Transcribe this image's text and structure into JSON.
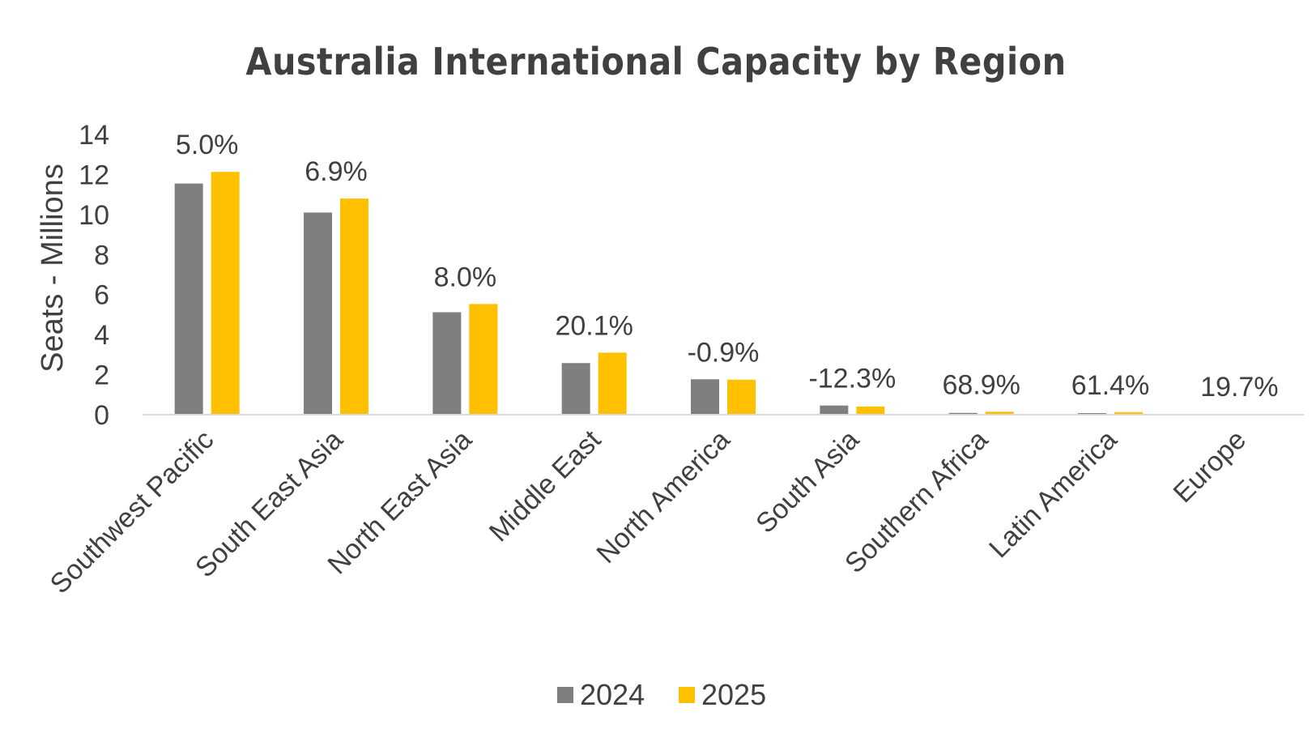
{
  "chart_data": {
    "type": "bar",
    "title": "Australia International Capacity by Region",
    "xlabel": "",
    "ylabel": "Seats - Millions",
    "ylim": [
      0,
      14
    ],
    "yticks": [
      "0",
      "2",
      "4",
      "6",
      "8",
      "10",
      "12",
      "14"
    ],
    "grid": false,
    "legend_position": "bottom",
    "categories": [
      "Southwest Pacific",
      "South East Asia",
      "North East Asia",
      "Middle East",
      "North America",
      "South Asia",
      "Southern Africa",
      "Latin America",
      "Europe"
    ],
    "series": [
      {
        "name": "2024",
        "color": "#7f7f7f",
        "values": [
          11.55,
          10.1,
          5.12,
          2.58,
          1.77,
          0.46,
          0.09,
          0.08,
          0.03
        ]
      },
      {
        "name": "2025",
        "color": "#ffc000",
        "values": [
          12.13,
          10.8,
          5.53,
          3.1,
          1.75,
          0.41,
          0.15,
          0.13,
          0.04
        ]
      }
    ],
    "annotations": [
      "5.0%",
      "6.9%",
      "8.0%",
      "20.1%",
      "-0.9%",
      "-12.3%",
      "68.9%",
      "61.4%",
      "19.7%"
    ]
  }
}
